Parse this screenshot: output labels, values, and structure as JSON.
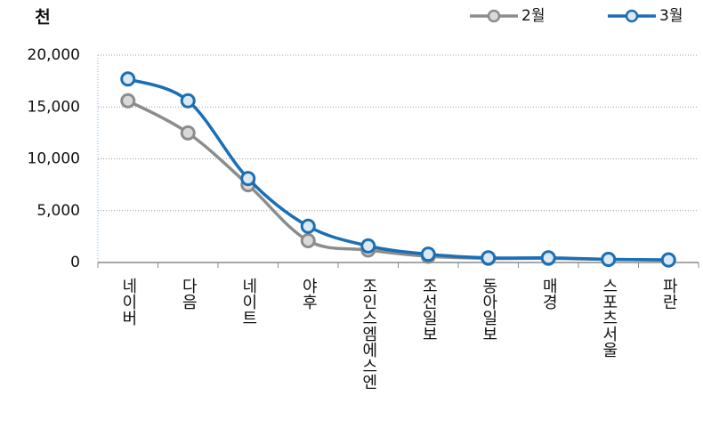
{
  "chart_data": {
    "type": "line",
    "unit_label": "천",
    "categories": [
      "네이버",
      "다음",
      "네이트",
      "야후",
      "조인스엠에스엔",
      "조선일보",
      "동아일보",
      "매경",
      "스포츠서울",
      "파란"
    ],
    "series": [
      {
        "name": "2월",
        "color": "#8c8c8c",
        "marker_fill": "#d9d9d9",
        "values": [
          15600,
          12500,
          7500,
          2100,
          1200,
          600,
          400,
          400,
          300,
          250
        ]
      },
      {
        "name": "3월",
        "color": "#1a6fb5",
        "marker_fill": "#dce9f5",
        "values": [
          17700,
          15600,
          8100,
          3500,
          1600,
          800,
          450,
          450,
          300,
          250
        ]
      }
    ],
    "ylim": [
      0,
      20000
    ],
    "yticks": [
      0,
      {
        "value": 5000,
        "label": "5,000"
      },
      {
        "value": 10000,
        "label": "10,000"
      },
      {
        "value": 15000,
        "label": "15,000"
      },
      {
        "value": 20000,
        "label": "20,000"
      }
    ],
    "grid": true,
    "legend": "top-right",
    "smooth": true
  }
}
